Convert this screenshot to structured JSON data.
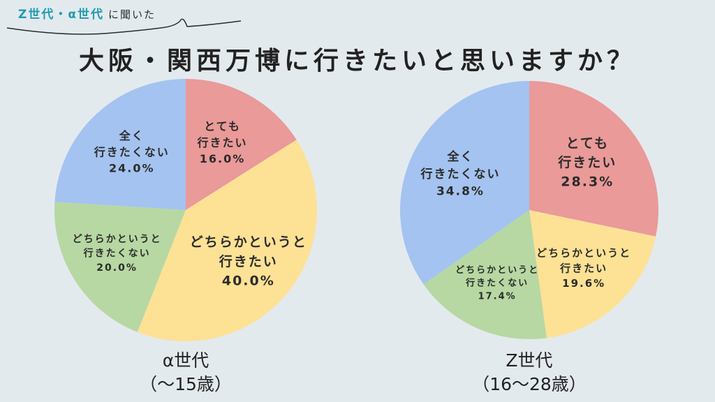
{
  "header": {
    "tag_accent": "Z世代・α世代",
    "tag_plain": "に聞いた",
    "title": "大阪・関西万博に行きたいと思いますか？"
  },
  "colors": {
    "very_want": "#e99a99",
    "somewhat_want": "#fde195",
    "somewhat_not": "#b7d8a2",
    "not_at_all": "#a4c3f0",
    "accent": "#1f9bb0"
  },
  "chart_data": [
    {
      "type": "pie",
      "group": "α世代",
      "group_sub": "（〜15歳）",
      "slices": [
        {
          "label_lines": [
            "とても",
            "行きたい"
          ],
          "value": 16.0,
          "value_label": "16.0%",
          "color": "#e99a99"
        },
        {
          "label_lines": [
            "どちらかというと",
            "行きたい"
          ],
          "value": 40.0,
          "value_label": "40.0%",
          "color": "#fde195"
        },
        {
          "label_lines": [
            "どちらかというと",
            "行きたくない"
          ],
          "value": 20.0,
          "value_label": "20.0%",
          "color": "#b7d8a2"
        },
        {
          "label_lines": [
            "全く",
            "行きたくない"
          ],
          "value": 24.0,
          "value_label": "24.0%",
          "color": "#a4c3f0"
        }
      ]
    },
    {
      "type": "pie",
      "group": "Z世代",
      "group_sub": "（16〜28歳）",
      "slices": [
        {
          "label_lines": [
            "とても",
            "行きたい"
          ],
          "value": 28.3,
          "value_label": "28.3%",
          "color": "#e99a99"
        },
        {
          "label_lines": [
            "どちらかというと",
            "行きたい"
          ],
          "value": 19.6,
          "value_label": "19.6%",
          "color": "#fde195"
        },
        {
          "label_lines": [
            "どちらかというと",
            "行きたくない"
          ],
          "value": 17.4,
          "value_label": "17.4%",
          "color": "#b7d8a2"
        },
        {
          "label_lines": [
            "全く",
            "行きたくない"
          ],
          "value": 34.8,
          "value_label": "34.8%",
          "color": "#a4c3f0"
        }
      ]
    }
  ]
}
